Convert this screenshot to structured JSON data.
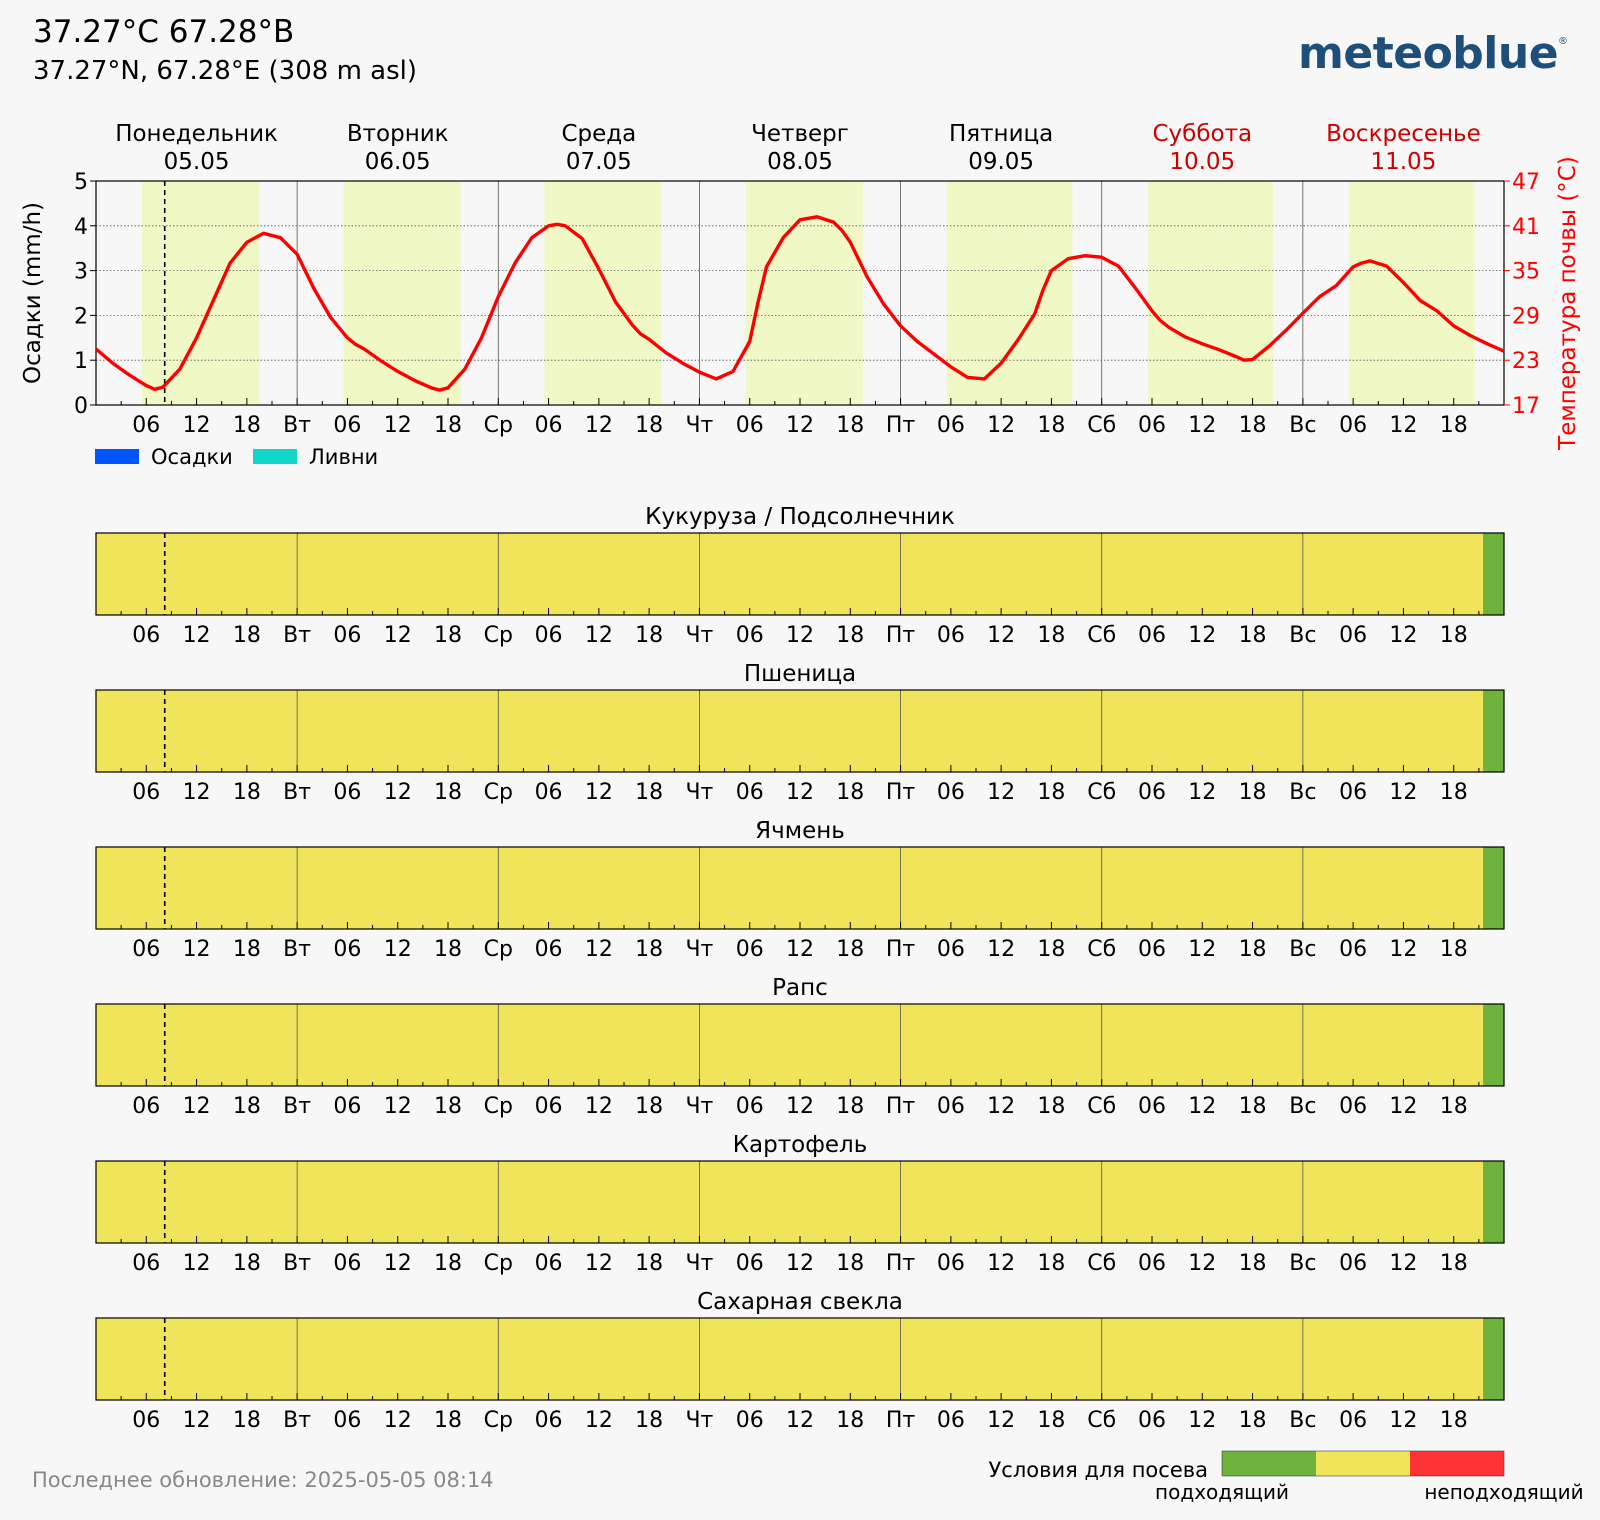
{
  "header": {
    "title": "37.27°C 67.28°В",
    "subtitle": "37.27°N, 67.28°E (308 m asl)",
    "logo": "meteoblue",
    "logo_mark": "®"
  },
  "footer": {
    "last_update": "Последнее обновление: 2025-05-05 08:14"
  },
  "days": [
    {
      "name": "Понедельник",
      "date": "05.05",
      "short": "",
      "weekend": false
    },
    {
      "name": "Вторник",
      "date": "06.05",
      "short": "Вт",
      "weekend": false
    },
    {
      "name": "Среда",
      "date": "07.05",
      "short": "Ср",
      "weekend": false
    },
    {
      "name": "Четверг",
      "date": "08.05",
      "short": "Чт",
      "weekend": false
    },
    {
      "name": "Пятница",
      "date": "09.05",
      "short": "Пт",
      "weekend": false
    },
    {
      "name": "Суббота",
      "date": "10.05",
      "short": "Сб",
      "weekend": true
    },
    {
      "name": "Воскресенье",
      "date": "11.05",
      "short": "Вс",
      "weekend": true
    }
  ],
  "hour_ticks": [
    "06",
    "12",
    "18"
  ],
  "legend": [
    {
      "label": "Осадки",
      "color": "#0055ff"
    },
    {
      "label": "Ливни",
      "color": "#11d6c8"
    }
  ],
  "colors": {
    "temperature": "#ff0000",
    "daylight": "#f0f8c6",
    "crop_moderate": "#f0e45a",
    "crop_suitable": "#6cb23c",
    "crop_unsuitable": "#ff3333",
    "weekend_text": "#cc0000"
  },
  "crops": [
    "Кукуруза / Подсолнечник",
    "Пшеница",
    "Ячмень",
    "Рапс",
    "Картофель",
    "Сахарная свекла"
  ],
  "crop_scale": {
    "title": "Условия для посева",
    "low_label": "подходящий",
    "high_label": "неподходящий"
  },
  "chart_data": [
    {
      "type": "line",
      "series": [
        {
          "name": "Температура почвы",
          "axis": "right",
          "x": [
            0,
            2,
            4,
            6,
            7,
            8,
            10,
            12,
            14,
            16,
            18,
            20,
            22,
            24,
            26,
            28,
            30,
            31,
            32,
            34,
            36,
            38,
            40,
            41,
            42,
            44,
            46,
            48,
            50,
            52,
            54,
            55,
            56,
            58,
            60,
            62,
            64,
            65,
            66,
            68,
            70,
            72,
            74,
            76,
            78,
            79,
            80,
            82,
            84,
            86,
            88,
            89,
            90,
            92,
            94,
            96,
            98,
            100,
            102,
            103,
            104,
            106,
            108,
            110,
            112,
            113,
            114,
            116,
            118,
            120,
            122,
            124,
            126,
            127,
            128,
            130,
            132,
            134,
            136,
            137,
            138,
            140,
            142,
            144,
            146,
            148,
            150,
            151,
            152,
            154,
            156,
            158,
            160,
            161,
            162,
            164,
            166,
            168
          ],
          "y": [
            24.5,
            22.6,
            21.0,
            19.6,
            19.1,
            19.4,
            21.8,
            26.0,
            31.0,
            36.0,
            38.8,
            40.0,
            39.4,
            37.2,
            32.6,
            28.7,
            26.0,
            25.1,
            24.5,
            22.9,
            21.5,
            20.3,
            19.3,
            19.0,
            19.3,
            21.8,
            26.0,
            31.5,
            36.0,
            39.4,
            41.0,
            41.2,
            41.0,
            39.3,
            35.2,
            30.8,
            27.7,
            26.5,
            25.8,
            24.0,
            22.6,
            21.4,
            20.5,
            21.5,
            25.5,
            30.8,
            35.5,
            39.4,
            41.8,
            42.2,
            41.5,
            40.4,
            38.8,
            34.2,
            30.5,
            27.6,
            25.5,
            23.8,
            22.1,
            21.4,
            20.7,
            20.5,
            22.6,
            25.7,
            29.2,
            32.4,
            35.0,
            36.6,
            37.0,
            36.8,
            35.6,
            32.7,
            29.6,
            28.3,
            27.4,
            26.1,
            25.2,
            24.4,
            23.5,
            23.0,
            23.1,
            24.9,
            27.0,
            29.3,
            31.5,
            33.0,
            35.5,
            36.0,
            36.3,
            35.6,
            33.4,
            31.0,
            29.6,
            28.6,
            27.6,
            26.3,
            25.2,
            24.2
          ]
        }
      ],
      "precipitation_series": [],
      "ylabel_left": "Осадки (mm/h)",
      "ylabel_right": "Температура почвы (°C)",
      "ylim_left": [
        0,
        5
      ],
      "ylim_right": [
        17,
        47
      ],
      "yticks_left": [
        "0",
        "1",
        "2",
        "3",
        "4",
        "5"
      ],
      "yticks_right": [
        "17",
        "23",
        "29",
        "35",
        "41",
        "47"
      ],
      "xlim_hours": [
        0,
        168
      ],
      "now_hour": 8.2,
      "daylight_hours": [
        [
          5.5,
          19.5
        ],
        [
          29.5,
          43.5
        ],
        [
          53.5,
          67.5
        ],
        [
          77.5,
          91.5
        ],
        [
          101.5,
          116.5
        ],
        [
          125.5,
          140.5
        ],
        [
          149.5,
          164.5
        ]
      ],
      "grid": true
    },
    {
      "type": "heatmap",
      "rows": [
        "Кукуруза / Подсолнечник",
        "Пшеница",
        "Ячмень",
        "Рапс",
        "Картофель",
        "Сахарная свекла"
      ],
      "segments": [
        {
          "from_hour": 0,
          "to_hour": 165.5,
          "condition": "moderate"
        },
        {
          "from_hour": 165.5,
          "to_hour": 168,
          "condition": "suitable"
        }
      ]
    }
  ]
}
